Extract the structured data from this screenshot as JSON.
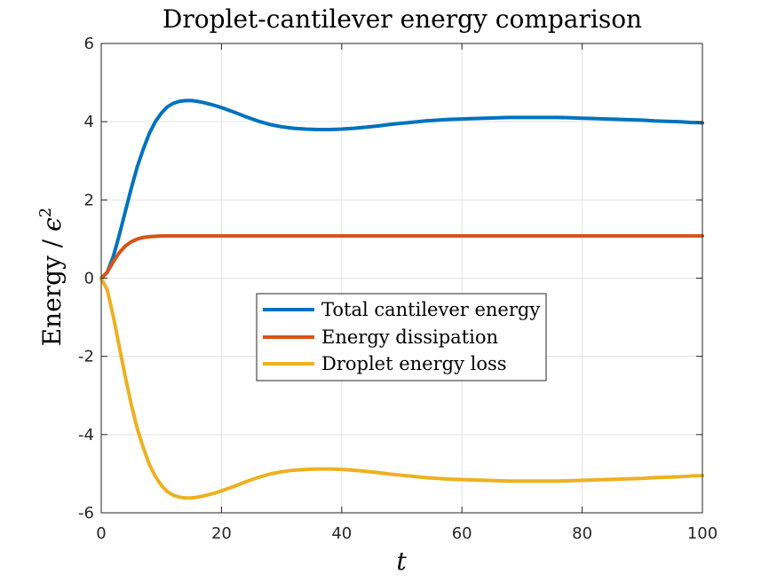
{
  "chart_data": {
    "type": "line",
    "title": "Droplet-cantilever energy comparison",
    "xlabel": "t",
    "ylabel_main": "Energy  / ",
    "ylabel_symbol": "ϵ",
    "ylabel_exponent": "2",
    "xlim": [
      0,
      100
    ],
    "ylim": [
      -6,
      6
    ],
    "xticks": [
      0,
      20,
      40,
      60,
      80,
      100
    ],
    "yticks": [
      -6,
      -4,
      -2,
      0,
      2,
      4,
      6
    ],
    "xtick_labels": [
      "0",
      "20",
      "40",
      "60",
      "80",
      "100"
    ],
    "ytick_labels": [
      "-6",
      "-4",
      "-2",
      "0",
      "2",
      "4",
      "6"
    ],
    "grid": true,
    "legend_position": "center",
    "series": [
      {
        "name": "Total cantilever energy",
        "color": "#0072BD",
        "x": [
          0,
          1,
          2,
          3,
          4,
          5,
          6,
          7,
          8,
          9,
          10,
          11,
          12,
          13,
          14,
          15,
          16,
          17,
          18,
          19,
          20,
          22,
          24,
          26,
          28,
          30,
          32,
          34,
          36,
          38,
          40,
          42,
          44,
          46,
          48,
          50,
          52,
          54,
          56,
          58,
          60,
          62,
          64,
          66,
          68,
          70,
          72,
          74,
          76,
          78,
          80,
          82,
          84,
          86,
          88,
          90,
          92,
          94,
          96,
          98,
          100
        ],
        "y": [
          0,
          0.15,
          0.55,
          1.1,
          1.7,
          2.3,
          2.85,
          3.3,
          3.7,
          4.0,
          4.22,
          4.38,
          4.47,
          4.52,
          4.54,
          4.54,
          4.52,
          4.49,
          4.45,
          4.41,
          4.36,
          4.25,
          4.13,
          4.02,
          3.93,
          3.87,
          3.83,
          3.81,
          3.8,
          3.8,
          3.81,
          3.83,
          3.86,
          3.89,
          3.93,
          3.96,
          3.99,
          4.02,
          4.04,
          4.06,
          4.07,
          4.08,
          4.09,
          4.1,
          4.11,
          4.11,
          4.11,
          4.11,
          4.11,
          4.1,
          4.09,
          4.08,
          4.07,
          4.06,
          4.05,
          4.04,
          4.02,
          4.01,
          4.0,
          3.98,
          3.97
        ]
      },
      {
        "name": "Energy dissipation",
        "color": "#D95319",
        "x": [
          0,
          1,
          2,
          3,
          4,
          5,
          6,
          7,
          8,
          9,
          10,
          12,
          14,
          16,
          20,
          30,
          40,
          60,
          80,
          100
        ],
        "y": [
          0,
          0.15,
          0.42,
          0.65,
          0.82,
          0.93,
          1.0,
          1.04,
          1.06,
          1.07,
          1.08,
          1.08,
          1.08,
          1.08,
          1.08,
          1.08,
          1.08,
          1.08,
          1.08,
          1.08
        ]
      },
      {
        "name": "Droplet energy loss",
        "color": "#EDB120",
        "x": [
          0,
          1,
          2,
          3,
          4,
          5,
          6,
          7,
          8,
          9,
          10,
          11,
          12,
          13,
          14,
          15,
          16,
          17,
          18,
          19,
          20,
          22,
          24,
          26,
          28,
          30,
          32,
          34,
          36,
          38,
          40,
          42,
          44,
          46,
          48,
          50,
          52,
          54,
          56,
          58,
          60,
          62,
          64,
          66,
          68,
          70,
          72,
          74,
          76,
          78,
          80,
          82,
          84,
          86,
          88,
          90,
          92,
          94,
          96,
          98,
          100
        ],
        "y": [
          0,
          -0.3,
          -0.97,
          -1.75,
          -2.52,
          -3.23,
          -3.85,
          -4.34,
          -4.76,
          -5.07,
          -5.3,
          -5.46,
          -5.55,
          -5.6,
          -5.62,
          -5.62,
          -5.6,
          -5.57,
          -5.53,
          -5.49,
          -5.44,
          -5.33,
          -5.21,
          -5.1,
          -5.01,
          -4.95,
          -4.91,
          -4.89,
          -4.88,
          -4.88,
          -4.89,
          -4.91,
          -4.94,
          -4.97,
          -5.01,
          -5.04,
          -5.07,
          -5.1,
          -5.12,
          -5.14,
          -5.15,
          -5.16,
          -5.17,
          -5.18,
          -5.19,
          -5.19,
          -5.19,
          -5.19,
          -5.19,
          -5.18,
          -5.17,
          -5.16,
          -5.15,
          -5.14,
          -5.13,
          -5.12,
          -5.1,
          -5.09,
          -5.08,
          -5.06,
          -5.05
        ]
      }
    ]
  }
}
